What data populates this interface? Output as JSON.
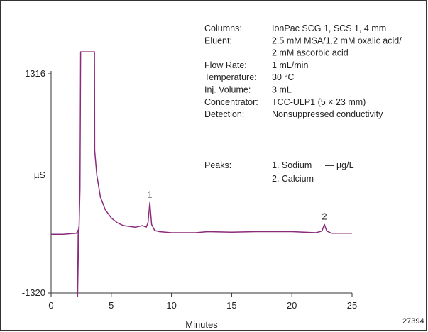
{
  "chart_data": {
    "type": "line",
    "xlabel": "Minutes",
    "ylabel": "µS",
    "xlim": [
      0,
      25
    ],
    "ylim": [
      -1320,
      -1316
    ],
    "x_ticks": [
      "0",
      "5",
      "10",
      "15",
      "20",
      "25"
    ],
    "y_ticks": [
      "-1316",
      "-1320"
    ],
    "grid": false,
    "figure_id": "27394",
    "conditions": [
      {
        "label": "Columns:",
        "value": "IonPac SCG 1, SCS 1, 4 mm"
      },
      {
        "label": "Eluent:",
        "value": "2.5 mM MSA/1.2 mM oxalic acid/"
      },
      {
        "label": "",
        "value": "2 mM ascorbic acid"
      },
      {
        "label": "Flow Rate:",
        "value": "1 mL/min"
      },
      {
        "label": "Temperature:",
        "value": "30 °C"
      },
      {
        "label": "Inj. Volume:",
        "value": "3 mL"
      },
      {
        "label": "Concentrator:",
        "value": "TCC-ULP1 (5 × 23 mm)"
      },
      {
        "label": "Detection:",
        "value": "Nonsuppressed conductivity"
      }
    ],
    "peaks_title": "Peaks:",
    "peaks": [
      {
        "label": "1. Sodium",
        "value": "— µg/L",
        "number": "1",
        "time": 8.2,
        "height": -1318.35
      },
      {
        "label": "2. Calcium",
        "value": "—",
        "number": "2",
        "time": 22.7,
        "height": -1318.75
      }
    ],
    "trace": [
      [
        0.0,
        -1318.93
      ],
      [
        1.0,
        -1318.93
      ],
      [
        2.1,
        -1318.91
      ],
      [
        2.25,
        -1318.85
      ],
      [
        2.2,
        -1320.07
      ],
      [
        2.3,
        -1318.8
      ],
      [
        2.32,
        -1318.87
      ],
      [
        2.4,
        -1318.1
      ],
      [
        2.45,
        -1315.6
      ],
      [
        3.6,
        -1315.6
      ],
      [
        3.62,
        -1317.4
      ],
      [
        3.8,
        -1317.85
      ],
      [
        4.1,
        -1318.25
      ],
      [
        4.5,
        -1318.48
      ],
      [
        5.0,
        -1318.63
      ],
      [
        5.5,
        -1318.72
      ],
      [
        6.0,
        -1318.77
      ],
      [
        7.0,
        -1318.8
      ],
      [
        7.4,
        -1318.78
      ],
      [
        7.6,
        -1318.77
      ],
      [
        7.9,
        -1318.8
      ],
      [
        8.05,
        -1318.72
      ],
      [
        8.2,
        -1318.35
      ],
      [
        8.35,
        -1318.75
      ],
      [
        8.6,
        -1318.86
      ],
      [
        9.0,
        -1318.88
      ],
      [
        10.0,
        -1318.9
      ],
      [
        12.0,
        -1318.9
      ],
      [
        13.0,
        -1318.88
      ],
      [
        15.0,
        -1318.89
      ],
      [
        17.0,
        -1318.88
      ],
      [
        20.0,
        -1318.88
      ],
      [
        22.0,
        -1318.9
      ],
      [
        22.5,
        -1318.87
      ],
      [
        22.7,
        -1318.75
      ],
      [
        22.9,
        -1318.87
      ],
      [
        23.3,
        -1318.91
      ],
      [
        25.0,
        -1318.91
      ]
    ]
  }
}
